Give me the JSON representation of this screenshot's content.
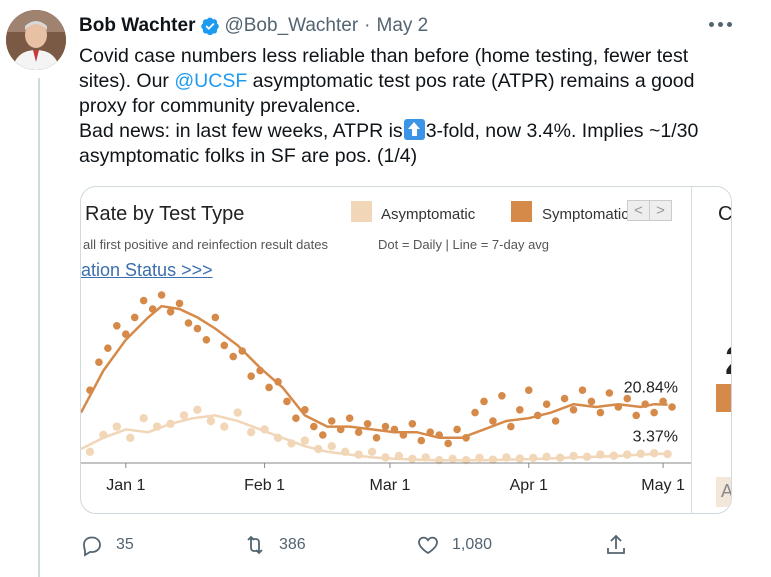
{
  "tweet": {
    "author_name": "Bob Wachter",
    "handle": "@Bob_Wachter",
    "separator": "·",
    "date": "May 2",
    "text_lines": {
      "l1": "Covid case numbers less reliable than before (home testing, fewer test",
      "l2a": "sites). Our ",
      "l2_mention": "@UCSF",
      "l2b": " asymptomatic test pos rate (ATPR) remains a good",
      "l3": "proxy for community prevalence.",
      "l4a": "Bad news: in last few weeks, ATPR is",
      "l4b": "3-fold, now 3.4%. Implies ~1/30",
      "l5": "asymptomatic folks in SF are pos. (1/4)"
    }
  },
  "media": {
    "title_partial": "Rate by Test Type",
    "legend_asymptomatic": "Asymptomatic",
    "legend_symptomatic": "Symptomatic",
    "subtitle_partial": "all first positive and reinfection result dates",
    "daily_note": "Dot = Daily  |  Line = 7-day avg",
    "link_partial": "ation Status >>>",
    "scroll_left": "<",
    "scroll_right": ">",
    "side_letter_c": "C",
    "side_big": "2",
    "side_letter_a": "A",
    "colors": {
      "symptomatic": "#d68a4a",
      "asymptomatic": "#f1d6b8"
    }
  },
  "chart_data": {
    "type": "scatter",
    "x_ticks": [
      "Jan 1",
      "Feb 1",
      "Mar 1",
      "Apr 1",
      "May 1"
    ],
    "x_range_days": [
      -10,
      124
    ],
    "y_range_percent": [
      0,
      70
    ],
    "grid": false,
    "legend_position": "top",
    "end_labels": [
      "20.84%",
      "3.37%"
    ],
    "series": [
      {
        "name": "Symptomatic",
        "color": "#d68a4a",
        "line_days": [
          -10,
          -5,
          0,
          5,
          8,
          12,
          16,
          20,
          25,
          30,
          35,
          40,
          45,
          50,
          55,
          60,
          65,
          70,
          75,
          80,
          85,
          90,
          95,
          100,
          105,
          110,
          115,
          118,
          121
        ],
        "line_values": [
          18,
          33,
          44,
          52,
          56,
          55,
          52,
          48,
          42,
          34,
          27,
          17,
          13,
          13,
          12,
          11,
          11,
          9,
          9,
          12,
          15,
          16,
          18,
          21,
          20,
          21,
          20,
          21,
          20.84
        ],
        "dots_days": [
          -8,
          -6,
          -4,
          -2,
          0,
          2,
          4,
          6,
          8,
          10,
          12,
          14,
          16,
          18,
          20,
          22,
          24,
          26,
          28,
          30,
          32,
          34,
          36,
          38,
          40,
          42,
          44,
          46,
          48,
          50,
          52,
          54,
          56,
          58,
          60,
          62,
          64,
          66,
          68,
          70,
          72,
          74,
          76,
          78,
          80,
          82,
          84,
          86,
          88,
          90,
          92,
          94,
          96,
          98,
          100,
          102,
          104,
          106,
          108,
          110,
          112,
          114,
          116,
          118,
          120,
          122
        ],
        "dots_values": [
          26,
          36,
          41,
          49,
          46,
          52,
          58,
          55,
          60,
          54,
          57,
          50,
          48,
          44,
          52,
          42,
          38,
          40,
          31,
          33,
          27,
          29,
          22,
          16,
          19,
          13,
          10,
          15,
          12,
          16,
          11,
          14,
          9,
          13,
          12,
          10,
          14,
          8,
          11,
          10,
          7,
          12,
          9,
          18,
          22,
          15,
          24,
          13,
          19,
          26,
          17,
          21,
          15,
          23,
          19,
          26,
          22,
          18,
          25,
          20,
          23,
          17,
          21,
          18,
          22,
          20
        ]
      },
      {
        "name": "Asymptomatic",
        "color": "#f1d6b8",
        "line_days": [
          -10,
          -5,
          0,
          5,
          10,
          15,
          20,
          25,
          30,
          35,
          40,
          45,
          50,
          55,
          60,
          65,
          70,
          75,
          80,
          85,
          90,
          95,
          100,
          105,
          110,
          115,
          118,
          121
        ],
        "line_values": [
          5,
          9,
          12,
          11,
          14,
          16,
          17,
          15,
          12,
          9,
          6,
          4,
          3,
          2,
          1.5,
          1.2,
          1,
          1,
          1,
          1.2,
          1.4,
          1.6,
          2,
          2.2,
          2.5,
          3,
          3.2,
          3.37
        ],
        "dots_days": [
          -8,
          -5,
          -2,
          1,
          4,
          7,
          10,
          13,
          16,
          19,
          22,
          25,
          28,
          31,
          34,
          37,
          40,
          43,
          46,
          49,
          52,
          55,
          58,
          61,
          64,
          67,
          70,
          73,
          76,
          79,
          82,
          85,
          88,
          91,
          94,
          97,
          100,
          103,
          106,
          109,
          112,
          115,
          118,
          121
        ],
        "dots_values": [
          4,
          10,
          13,
          9,
          16,
          13,
          14,
          17,
          19,
          15,
          13,
          18,
          11,
          12,
          9,
          7,
          8,
          5,
          6,
          4,
          3,
          4,
          2,
          2.5,
          1.5,
          2,
          1,
          1.5,
          1,
          1.8,
          1.2,
          2,
          1.6,
          1.8,
          2.2,
          1.9,
          2.5,
          2.2,
          3,
          2.6,
          3,
          3.3,
          3.5,
          3.2
        ]
      }
    ]
  },
  "actions": {
    "reply_count": "35",
    "retweet_count": "386",
    "like_count": "1,080"
  }
}
